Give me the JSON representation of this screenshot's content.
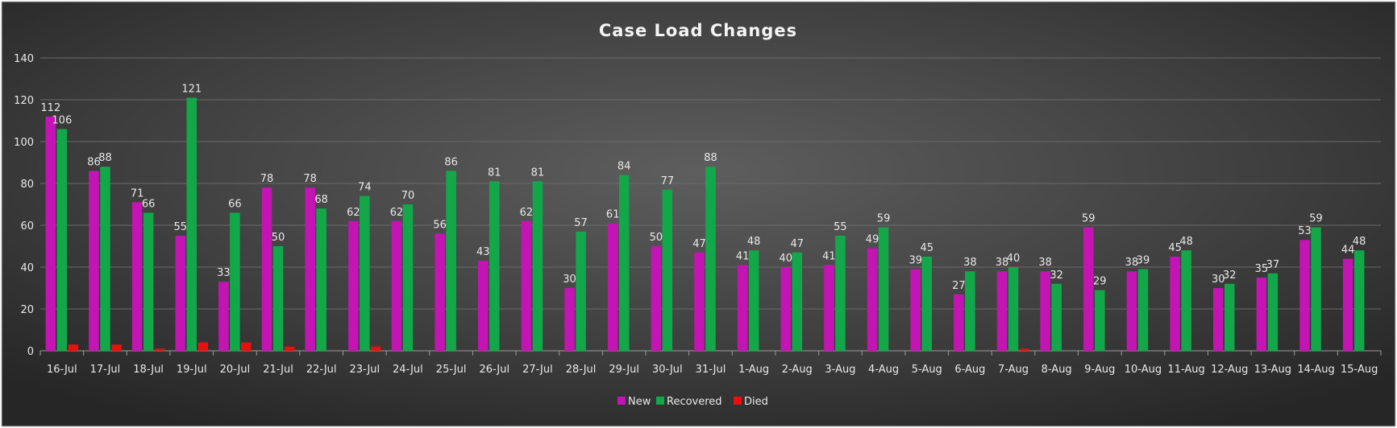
{
  "chart_data": {
    "type": "bar",
    "title": "Case Load Changes",
    "xlabel": "",
    "ylabel": "",
    "ylim": [
      0,
      140
    ],
    "yticks": [
      0,
      20,
      40,
      60,
      80,
      100,
      120,
      140
    ],
    "grid": true,
    "legend_position": "bottom",
    "categories": [
      "16-Jul",
      "17-Jul",
      "18-Jul",
      "19-Jul",
      "20-Jul",
      "21-Jul",
      "22-Jul",
      "23-Jul",
      "24-Jul",
      "25-Jul",
      "26-Jul",
      "27-Jul",
      "28-Jul",
      "29-Jul",
      "30-Jul",
      "31-Jul",
      "1-Aug",
      "2-Aug",
      "3-Aug",
      "4-Aug",
      "5-Aug",
      "6-Aug",
      "7-Aug",
      "8-Aug",
      "9-Aug",
      "10-Aug",
      "11-Aug",
      "12-Aug",
      "13-Aug",
      "14-Aug",
      "15-Aug"
    ],
    "series": [
      {
        "name": "New",
        "color": "#c414b4",
        "show_labels": true,
        "values": [
          112,
          86,
          71,
          55,
          33,
          78,
          78,
          62,
          62,
          56,
          43,
          62,
          30,
          61,
          50,
          47,
          41,
          40,
          41,
          49,
          39,
          27,
          38,
          38,
          59,
          38,
          45,
          30,
          35,
          53,
          44
        ]
      },
      {
        "name": "Recovered",
        "color": "#12a84a",
        "show_labels": true,
        "values": [
          106,
          88,
          66,
          121,
          66,
          50,
          68,
          74,
          70,
          86,
          81,
          81,
          57,
          84,
          77,
          88,
          48,
          47,
          55,
          59,
          45,
          38,
          40,
          32,
          29,
          39,
          48,
          32,
          37,
          59,
          48
        ]
      },
      {
        "name": "Died",
        "color": "#e8100c",
        "show_labels": false,
        "values": [
          3,
          3,
          1,
          4,
          4,
          2,
          0,
          2,
          0,
          0,
          0,
          0,
          0,
          0,
          0,
          0,
          0,
          0,
          0,
          0,
          0,
          0,
          1,
          0,
          0,
          0,
          0,
          0,
          0,
          0,
          0
        ]
      }
    ]
  }
}
